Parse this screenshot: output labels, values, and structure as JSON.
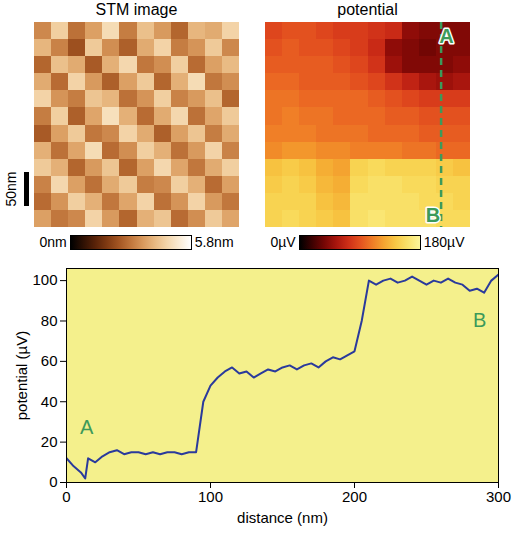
{
  "chart_data": [
    {
      "type": "heatmap",
      "title": "STM image",
      "tick_labels": false,
      "xlim": [
        0,
        300
      ],
      "ylim": [
        0,
        300
      ],
      "cells": [
        [
          3.2,
          4.5,
          2.8,
          3.6,
          4.8,
          3.0,
          4.2,
          3.5,
          2.6,
          4.0,
          3.8,
          4.6
        ],
        [
          4.0,
          3.1,
          2.2,
          4.4,
          3.3,
          2.5,
          3.8,
          4.6,
          3.0,
          3.4,
          4.4,
          3.2
        ],
        [
          2.6,
          4.2,
          3.8,
          2.4,
          3.9,
          4.7,
          2.9,
          3.3,
          4.5,
          2.7,
          3.6,
          4.1
        ],
        [
          3.8,
          2.7,
          4.6,
          3.5,
          2.5,
          3.6,
          4.4,
          2.6,
          3.9,
          4.8,
          2.9,
          3.3
        ],
        [
          4.6,
          3.4,
          3.0,
          4.3,
          4.0,
          2.8,
          3.4,
          4.5,
          3.1,
          3.5,
          4.2,
          2.6
        ],
        [
          3.0,
          4.5,
          2.5,
          3.7,
          4.9,
          3.9,
          2.7,
          3.8,
          4.7,
          2.8,
          3.7,
          4.4
        ],
        [
          2.4,
          3.6,
          4.4,
          2.9,
          3.2,
          4.6,
          3.8,
          2.5,
          3.6,
          4.3,
          3.0,
          3.8
        ],
        [
          3.9,
          2.8,
          3.7,
          4.8,
          2.7,
          3.3,
          4.5,
          3.9,
          2.8,
          3.5,
          4.6,
          3.1
        ],
        [
          4.4,
          3.9,
          2.6,
          3.5,
          4.3,
          2.6,
          3.6,
          4.7,
          3.7,
          2.9,
          3.8,
          4.5
        ],
        [
          3.1,
          4.7,
          3.6,
          2.8,
          3.8,
          4.4,
          3.0,
          3.2,
          4.5,
          3.9,
          2.7,
          3.6
        ],
        [
          2.7,
          3.4,
          4.5,
          3.9,
          2.9,
          3.7,
          4.6,
          2.8,
          3.4,
          4.6,
          3.5,
          2.9
        ],
        [
          3.6,
          2.9,
          3.2,
          4.6,
          3.5,
          2.6,
          3.9,
          4.3,
          2.7,
          3.3,
          4.4,
          3.7
        ]
      ],
      "color_range": [
        0,
        5.8
      ],
      "color_ticks": [
        {
          "value": 0,
          "label": "0nm"
        },
        {
          "value": 5.8,
          "label": "5.8nm"
        }
      ],
      "scale_bar": {
        "value": 50,
        "label": "50nm"
      }
    },
    {
      "type": "heatmap",
      "title": "potential",
      "tick_labels": false,
      "xlim": [
        0,
        300
      ],
      "ylim": [
        0,
        300
      ],
      "cells": [
        [
          85,
          90,
          90,
          85,
          80,
          80,
          75,
          70,
          45,
          40,
          40,
          40
        ],
        [
          90,
          95,
          90,
          90,
          85,
          80,
          70,
          45,
          40,
          35,
          40,
          40
        ],
        [
          95,
          95,
          95,
          95,
          90,
          85,
          75,
          50,
          40,
          40,
          40,
          45
        ],
        [
          100,
          100,
          95,
          95,
          95,
          90,
          85,
          75,
          65,
          55,
          50,
          55
        ],
        [
          105,
          105,
          100,
          100,
          100,
          100,
          95,
          90,
          85,
          80,
          80,
          80
        ],
        [
          105,
          110,
          105,
          105,
          100,
          100,
          100,
          95,
          95,
          90,
          90,
          90
        ],
        [
          110,
          110,
          110,
          105,
          105,
          105,
          100,
          100,
          100,
          95,
          95,
          95
        ],
        [
          115,
          120,
          120,
          115,
          115,
          110,
          110,
          110,
          105,
          105,
          100,
          100
        ],
        [
          140,
          145,
          140,
          130,
          125,
          150,
          155,
          150,
          150,
          150,
          145,
          140
        ],
        [
          145,
          150,
          145,
          135,
          130,
          155,
          160,
          160,
          155,
          155,
          150,
          150
        ],
        [
          150,
          150,
          150,
          140,
          135,
          160,
          160,
          160,
          160,
          155,
          155,
          150
        ],
        [
          150,
          155,
          150,
          145,
          140,
          160,
          165,
          160,
          160,
          160,
          155,
          155
        ]
      ],
      "color_range": [
        0,
        180
      ],
      "color_ticks": [
        {
          "value": 0,
          "label": "0µV"
        },
        {
          "value": 180,
          "label": "180µV"
        }
      ],
      "profile": {
        "x": 257,
        "labels": [
          {
            "text": "A",
            "x": 265,
            "y": 20
          },
          {
            "text": "B",
            "x": 245,
            "y": 282
          }
        ]
      },
      "line_style": "dashed"
    },
    {
      "type": "line",
      "x_label": "distance (nm)",
      "y_label": "potential (µV)",
      "x": [
        0,
        5,
        10,
        13,
        15,
        20,
        25,
        30,
        35,
        40,
        45,
        50,
        55,
        60,
        65,
        70,
        75,
        80,
        85,
        90,
        95,
        100,
        105,
        110,
        115,
        120,
        125,
        130,
        135,
        140,
        145,
        150,
        155,
        160,
        165,
        170,
        175,
        180,
        185,
        190,
        195,
        200,
        205,
        210,
        215,
        220,
        225,
        230,
        235,
        240,
        245,
        250,
        255,
        260,
        265,
        270,
        275,
        280,
        285,
        290,
        295,
        300
      ],
      "values": [
        12,
        8,
        5,
        2,
        12,
        10,
        13,
        15,
        16,
        14,
        15,
        15,
        14,
        15,
        14,
        15,
        15,
        14,
        15,
        15,
        40,
        48,
        52,
        55,
        57,
        54,
        55,
        52,
        54,
        56,
        55,
        57,
        58,
        56,
        58,
        59,
        57,
        60,
        62,
        61,
        63,
        65,
        80,
        100,
        98,
        100,
        101,
        99,
        100,
        102,
        100,
        98,
        100,
        99,
        101,
        99,
        98,
        95,
        96,
        94,
        100,
        103
      ],
      "color": "#2a3a9c",
      "xlim": [
        0,
        300
      ],
      "ylim": [
        0,
        106
      ],
      "xticks": [
        0,
        100,
        200,
        300
      ],
      "yticks": [
        0,
        20,
        40,
        60,
        80,
        100
      ],
      "annotations": [
        {
          "text": "A",
          "x": 14,
          "y": 27
        },
        {
          "text": "B",
          "x": 287,
          "y": 80
        }
      ]
    }
  ]
}
